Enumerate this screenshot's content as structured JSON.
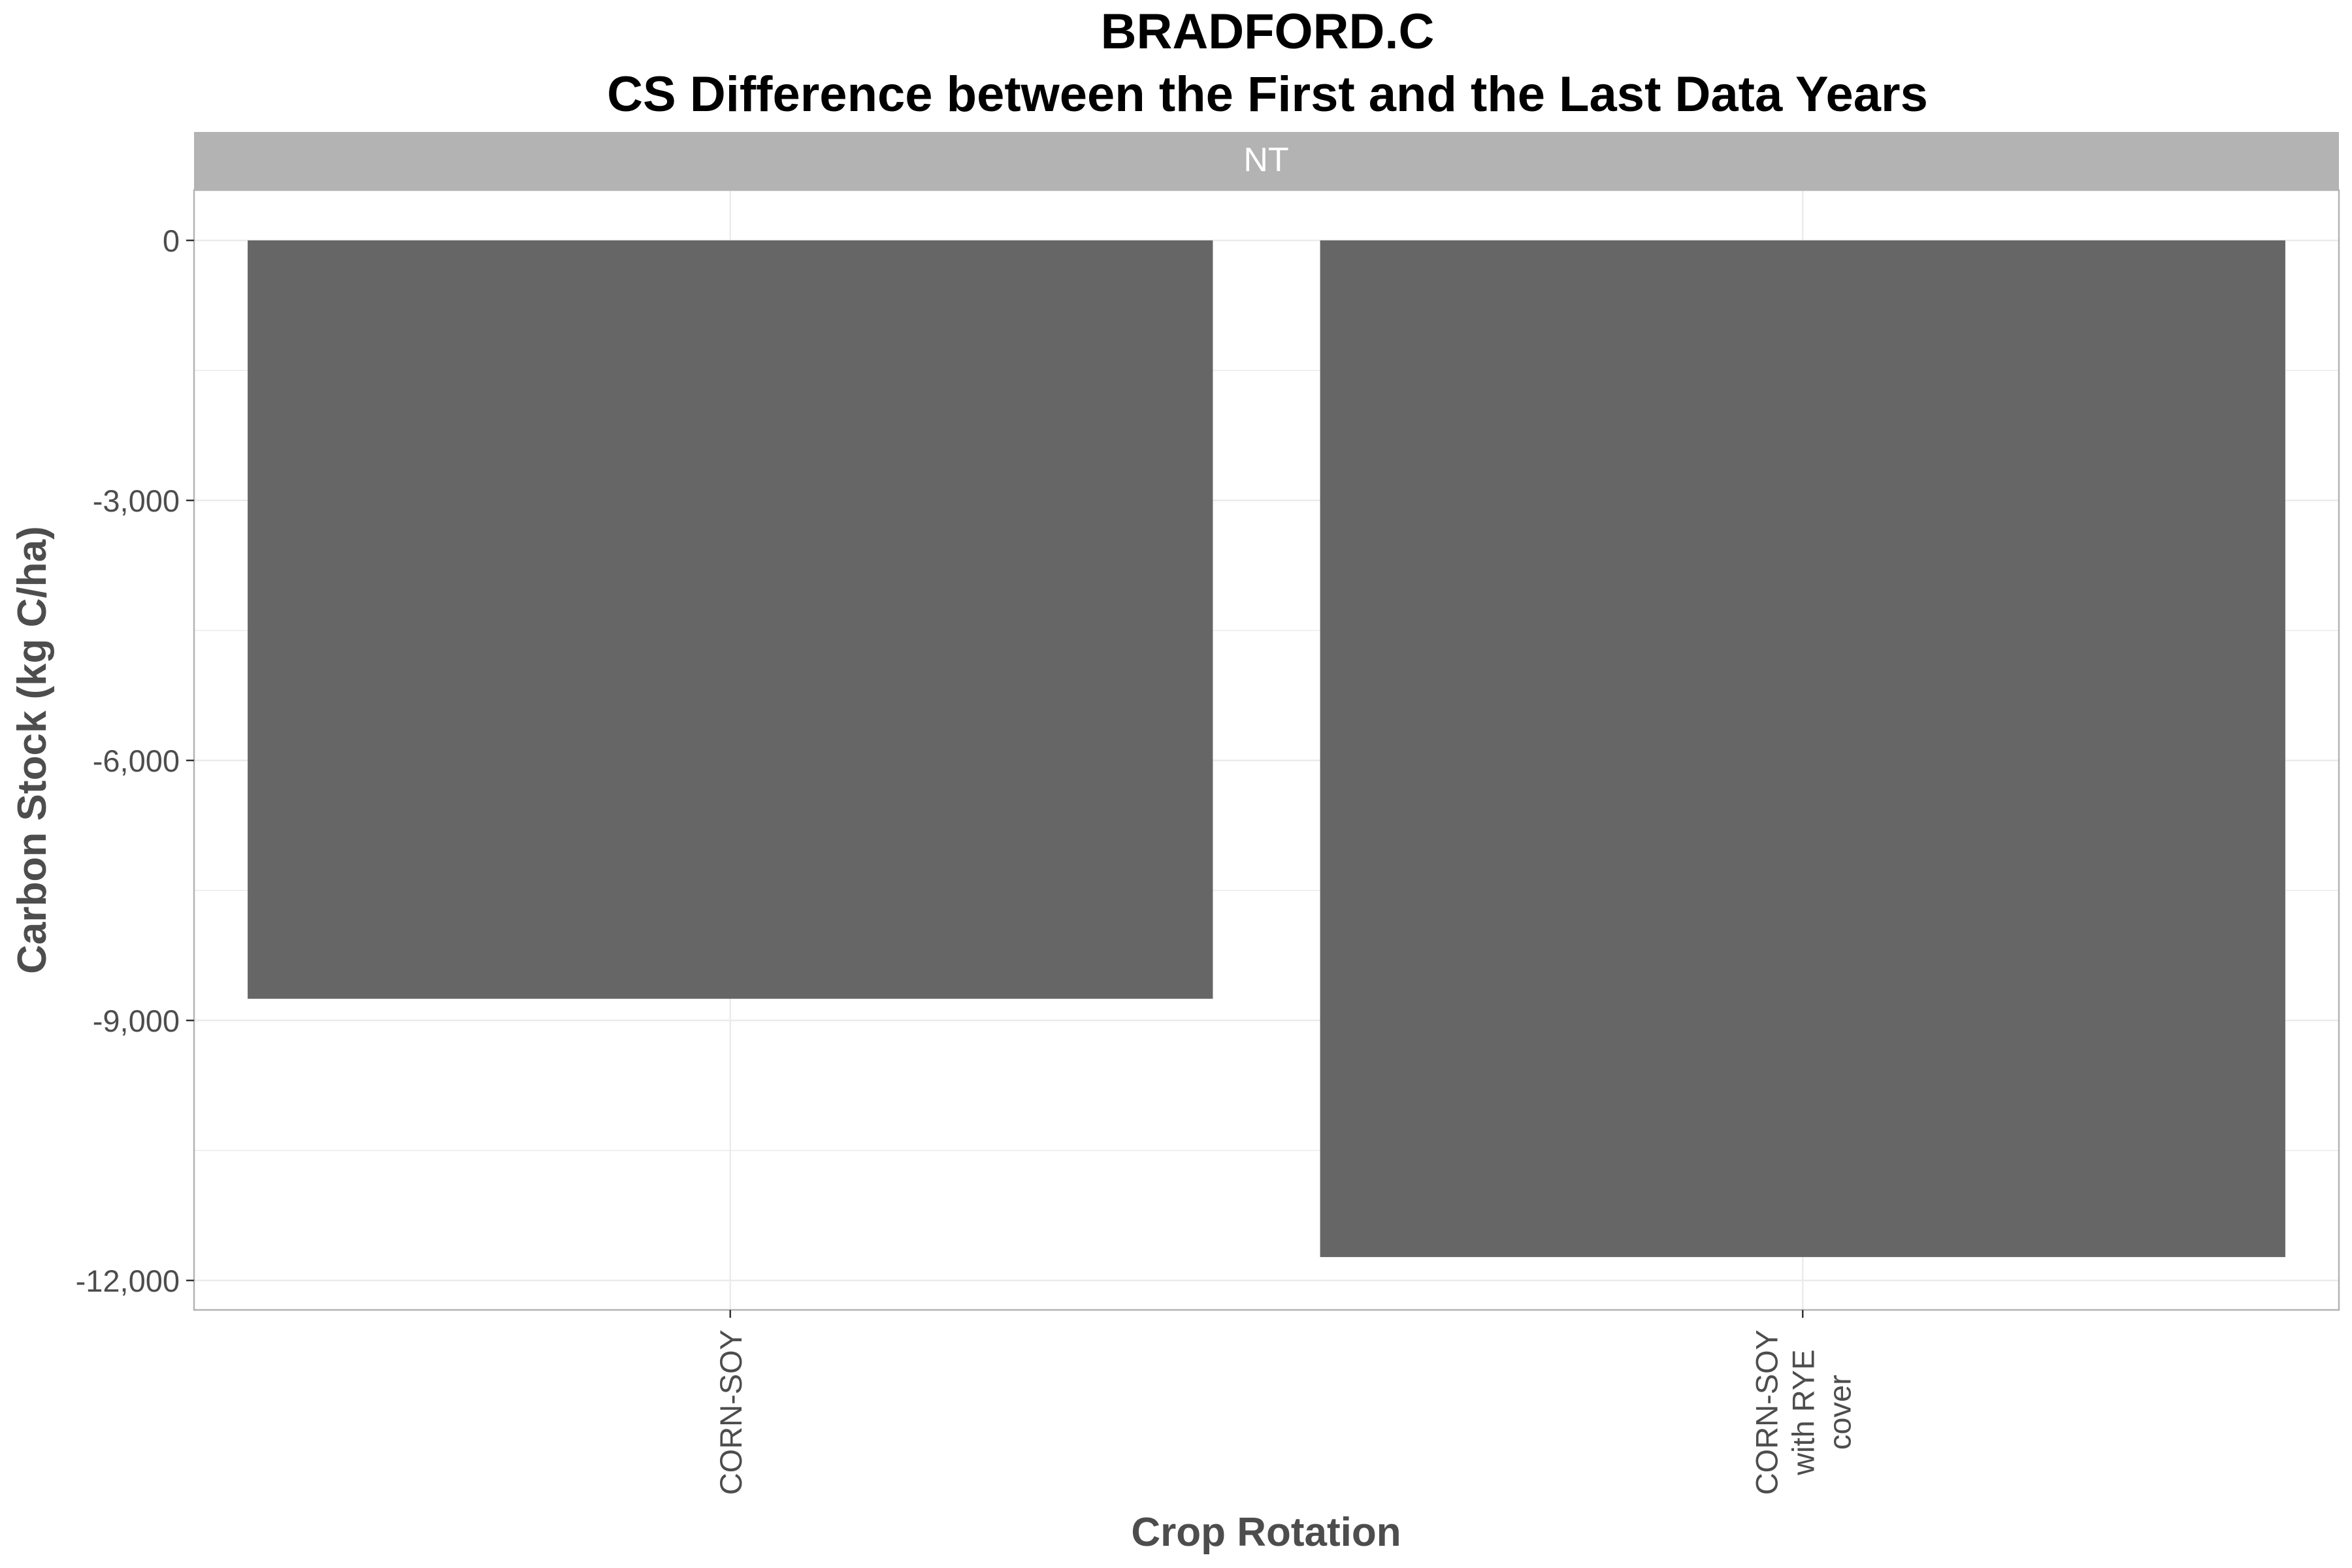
{
  "chart_data": {
    "type": "bar",
    "title": "BRADFORD.C",
    "subtitle": "CS Difference between the First and the Last Data Years",
    "facet": "NT",
    "xlabel": "Crop Rotation",
    "ylabel": "Carbon Stock (kg C/ha)",
    "categories": [
      "CORN-SOY",
      "CORN-SOY\nwith RYE\ncover"
    ],
    "values": [
      -8750,
      -11730
    ],
    "ylim": [
      -12340,
      580
    ],
    "yticks": [
      0,
      -3000,
      -6000,
      -9000,
      -12000
    ],
    "ytick_labels": [
      "0",
      "-3,000",
      "-6,000",
      "-9,000",
      "-12,000"
    ],
    "grid": true,
    "bar_color": "#666666",
    "strip_color": "#b3b3b3",
    "grid_color": "#ebebeb",
    "panel_border_color": "#b3b3b3"
  }
}
